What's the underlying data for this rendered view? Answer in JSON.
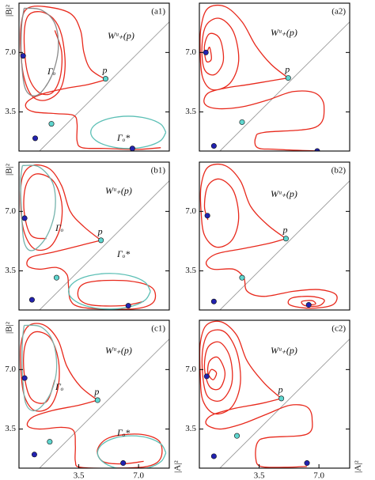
{
  "chart_data": [
    {
      "type": "line",
      "panel_label": "(a1)",
      "ylabel": "|B|²",
      "xlim": [
        0,
        8.8
      ],
      "ylim": [
        1.2,
        9.9
      ],
      "yticks": [
        {
          "value": 3.5,
          "label": "3.5"
        },
        {
          "value": 7,
          "label": "7.0"
        }
      ],
      "series": [
        {
          "name": "Wᵘ₊(p)",
          "color": "#e8291c",
          "x": [
            5.1,
            4.2,
            3.8,
            3.6,
            3.0,
            1.5,
            0.5,
            0.15,
            0.1,
            0.3,
            0.8,
            1.6,
            2.4,
            2.7,
            2.5,
            2.0,
            1.2,
            0.5,
            0.3,
            0.5,
            1.1,
            1.9,
            2.4,
            2.5,
            2.1,
            null,
            5.1,
            4.0,
            2.8,
            1.5,
            0.6,
            0.4,
            0.9,
            2.2,
            3.2,
            3.4,
            3.4,
            3.7,
            5.0,
            7.0,
            8.3
          ],
          "y": [
            5.4,
            6.0,
            7.0,
            8.3,
            9.3,
            9.7,
            9.6,
            8.8,
            7.2,
            5.5,
            4.4,
            4.2,
            4.8,
            6.2,
            8.0,
            9.0,
            9.4,
            9.1,
            7.8,
            5.8,
            4.7,
            4.6,
            5.5,
            7.0,
            8.3,
            null,
            5.4,
            5.1,
            4.9,
            4.6,
            4.2,
            3.8,
            3.5,
            3.4,
            3.3,
            2.8,
            1.8,
            1.4,
            1.35,
            1.3,
            1.4
          ]
        },
        {
          "name": "Γₒ",
          "color": "#8a8a8a",
          "x": [
            0.3,
            1.3,
            2.1,
            2.3,
            1.9,
            1.1,
            0.4,
            0.15,
            0.15,
            0.3
          ],
          "y": [
            9.6,
            9.5,
            8.7,
            7.2,
            5.6,
            4.5,
            4.8,
            6.5,
            8.5,
            9.6
          ]
        },
        {
          "name": "Γₒ*",
          "color": "#5bbfb5",
          "x": [
            8.6,
            8.3,
            7.5,
            6.4,
            5.3,
            4.5,
            4.2,
            4.5,
            5.3,
            6.4,
            7.5,
            8.3,
            8.6
          ],
          "y": [
            2.3,
            2.78,
            3.12,
            3.25,
            3.12,
            2.78,
            2.3,
            1.82,
            1.48,
            1.35,
            1.48,
            1.82,
            2.3
          ]
        }
      ],
      "points": {
        "x": [
          0.24,
          5.07,
          1.9,
          0.95,
          6.64
        ],
        "y": [
          6.8,
          5.45,
          2.8,
          1.95,
          1.35
        ],
        "labels": [
          null,
          "p",
          null,
          null,
          null
        ],
        "colors": [
          "#2222b0",
          "#5fd6cf",
          "#5fd6cf",
          "#2222b0",
          "#2222b0"
        ]
      }
    },
    {
      "type": "line",
      "panel_label": "(a2)",
      "xlim": [
        0,
        8.8
      ],
      "ylim": [
        1.2,
        9.9
      ],
      "yticks": [
        {
          "value": 3.5,
          "label": "3.5"
        },
        {
          "value": 7,
          "label": "7.0"
        }
      ],
      "series": [
        {
          "name": "Wᵘ₊(p)",
          "color": "#e8291c",
          "x": [
            5.2,
            4.2,
            3.3,
            2.5,
            1.5,
            0.5,
            0.1,
            0.05,
            0.2,
            0.8,
            1.8,
            2.3,
            2.0,
            1.2,
            0.4,
            0.15,
            0.3,
            0.9,
            1.4,
            1.2,
            0.6,
            0.3,
            0.4,
            0.7,
            0.6,
            0.45,
            null,
            5.2,
            4.0,
            2.8,
            1.5,
            0.5,
            0.3,
            1.0,
            2.5,
            4.0,
            5.5,
            6.8,
            7.3,
            6.8,
            3.8,
            3.3,
            3.4,
            4.5,
            6.9
          ],
          "y": [
            5.5,
            6.3,
            7.4,
            8.8,
            9.7,
            9.6,
            8.5,
            7.0,
            5.5,
            4.8,
            5.2,
            6.5,
            8.2,
            9.0,
            8.6,
            7.3,
            6.0,
            5.7,
            6.5,
            7.8,
            8.1,
            7.4,
            6.5,
            6.6,
            7.3,
            7.0,
            null,
            5.5,
            5.3,
            5.1,
            4.9,
            4.6,
            4.0,
            3.7,
            3.8,
            4.2,
            4.7,
            4.6,
            3.8,
            2.6,
            2.3,
            2.0,
            1.4,
            1.3,
            1.2
          ]
        }
      ],
      "points": {
        "x": [
          0.38,
          5.2,
          2.5,
          0.85,
          6.9
        ],
        "y": [
          7.0,
          5.5,
          2.9,
          1.5,
          1.2
        ],
        "labels": [
          null,
          "p",
          null,
          null,
          null
        ],
        "colors": [
          "#2222b0",
          "#5fd6cf",
          "#5fd6cf",
          "#2222b0",
          "#2222b0"
        ]
      }
    },
    {
      "type": "line",
      "panel_label": "(b1)",
      "ylabel": "|B|²",
      "xlim": [
        0,
        8.8
      ],
      "ylim": [
        1.2,
        9.9
      ],
      "yticks": [
        {
          "value": 3.5,
          "label": "3.5"
        },
        {
          "value": 7,
          "label": "7.0"
        }
      ],
      "series": [
        {
          "name": "Wᵘ₊(p)",
          "color": "#e8291c",
          "x": [
            4.8,
            3.8,
            3.0,
            2.5,
            1.8,
            0.8,
            0.2,
            0.1,
            0.3,
            0.9,
            1.8,
            2.4,
            2.5,
            2.0,
            1.0,
            0.4,
            0.3,
            0.7,
            1.6,
            null,
            4.8,
            3.6,
            2.0,
            0.7,
            0.5,
            1.2,
            2.2,
            2.8,
            2.9,
            3.0,
            3.5,
            5.0,
            7.0,
            7.9,
            7.8,
            6.5,
            4.5,
            3.6,
            3.5,
            4.2,
            6.0,
            7.3
          ],
          "y": [
            5.3,
            6.1,
            7.0,
            8.5,
            9.5,
            9.7,
            9.0,
            7.5,
            5.8,
            4.8,
            4.9,
            6.0,
            7.5,
            8.8,
            9.2,
            8.5,
            7.0,
            5.6,
            5.4,
            null,
            5.3,
            5.0,
            4.6,
            4.3,
            3.8,
            3.6,
            3.7,
            3.3,
            2.6,
            1.8,
            1.4,
            1.25,
            1.3,
            1.7,
            2.5,
            2.9,
            2.9,
            2.6,
            1.9,
            1.5,
            1.45,
            1.7
          ]
        },
        {
          "name": "Γₒ",
          "color": "#74b3ac",
          "x": [
            0.2,
            1.2,
            2.0,
            2.1,
            1.6,
            0.8,
            0.3,
            0.15,
            0.1,
            0.2
          ],
          "y": [
            9.7,
            9.6,
            8.6,
            7.0,
            5.5,
            4.7,
            5.2,
            7.0,
            8.8,
            9.7
          ]
        },
        {
          "name": "Γₒ*",
          "color": "#5bbfb5",
          "x": [
            7.7,
            7.38,
            6.5,
            5.3,
            4.1,
            3.22,
            2.9,
            3.22,
            4.1,
            5.3,
            6.5,
            7.38,
            7.7
          ],
          "y": [
            2.3,
            2.83,
            3.21,
            3.35,
            3.21,
            2.83,
            2.3,
            1.78,
            1.39,
            1.25,
            1.39,
            1.78,
            2.3
          ]
        }
      ],
      "points": {
        "x": [
          0.33,
          4.8,
          2.2,
          0.76,
          6.4
        ],
        "y": [
          6.6,
          5.3,
          3.1,
          1.8,
          1.45
        ],
        "labels": [
          null,
          "p",
          null,
          null,
          null
        ],
        "colors": [
          "#2222b0",
          "#5fd6cf",
          "#5fd6cf",
          "#2222b0",
          "#2222b0"
        ]
      }
    },
    {
      "type": "line",
      "panel_label": "(b2)",
      "xlim": [
        0,
        8.8
      ],
      "ylim": [
        1.2,
        9.9
      ],
      "yticks": [
        {
          "value": 3.5,
          "label": "3.5"
        },
        {
          "value": 7,
          "label": "7.0"
        }
      ],
      "series": [
        {
          "name": "Wᵘ₊(p)",
          "color": "#e8291c",
          "x": [
            5.07,
            4.0,
            3.0,
            2.4,
            1.5,
            0.5,
            0.1,
            0.1,
            0.3,
            1.0,
            1.9,
            2.3,
            2.0,
            1.2,
            0.5,
            0.3,
            0.5,
            null,
            5.07,
            4.0,
            2.5,
            1.0,
            0.4,
            0.8,
            2.0,
            2.6,
            2.8,
            3.8,
            5.5,
            7.0,
            8.0,
            7.8,
            6.5,
            5.3,
            5.4,
            6.5,
            7.3,
            7.0,
            6.2,
            6.0,
            6.6,
            6.8,
            6.4
          ],
          "y": [
            5.4,
            6.2,
            7.3,
            8.8,
            9.7,
            9.6,
            8.5,
            7.0,
            5.6,
            4.9,
            5.3,
            6.6,
            8.2,
            8.9,
            8.5,
            7.3,
            6.5,
            null,
            5.4,
            5.1,
            4.8,
            4.5,
            4.0,
            3.6,
            3.6,
            3.1,
            2.3,
            2.0,
            2.3,
            2.4,
            2.1,
            1.5,
            1.3,
            1.5,
            1.9,
            2.0,
            1.8,
            1.45,
            1.45,
            1.7,
            1.75,
            1.55,
            1.5
          ]
        }
      ],
      "points": {
        "x": [
          0.47,
          5.07,
          2.5,
          0.85,
          6.4
        ],
        "y": [
          6.75,
          5.4,
          3.1,
          1.7,
          1.5
        ],
        "labels": [
          null,
          "p",
          null,
          null,
          null
        ],
        "colors": [
          "#2222b0",
          "#5fd6cf",
          "#5fd6cf",
          "#2222b0",
          "#2222b0"
        ]
      }
    },
    {
      "type": "line",
      "panel_label": "(c1)",
      "ylabel": "|B|²",
      "xlabel": "|A|²",
      "xlim": [
        0,
        8.8
      ],
      "ylim": [
        1.2,
        9.9
      ],
      "xticks": [
        {
          "value": 3.5,
          "label": "3.5"
        },
        {
          "value": 7,
          "label": "7.0"
        }
      ],
      "yticks": [
        {
          "value": 3.5,
          "label": "3.5"
        },
        {
          "value": 7,
          "label": "7.0"
        }
      ],
      "series": [
        {
          "name": "Wᵘ₊(p)",
          "color": "#e8291c",
          "x": [
            4.6,
            3.6,
            2.8,
            2.3,
            1.5,
            0.6,
            0.15,
            0.1,
            0.3,
            0.9,
            1.8,
            2.3,
            2.3,
            1.8,
            0.9,
            0.35,
            0.3,
            0.7,
            1.6,
            2.1,
            null,
            4.6,
            3.5,
            2.0,
            0.8,
            0.5,
            1.2,
            2.5,
            3.2,
            3.3,
            3.3,
            3.6,
            5.5,
            7.5,
            8.3,
            8.2,
            7.0,
            5.3,
            4.6,
            4.9,
            6.0,
            7.3
          ],
          "y": [
            5.2,
            6.0,
            7.2,
            8.7,
            9.6,
            9.6,
            8.7,
            7.2,
            5.5,
            4.6,
            4.8,
            6.0,
            7.6,
            8.9,
            9.2,
            8.4,
            6.8,
            5.3,
            5.1,
            6.4,
            null,
            5.2,
            4.9,
            4.6,
            4.2,
            3.7,
            3.5,
            3.6,
            3.4,
            2.5,
            1.6,
            1.25,
            1.2,
            1.3,
            1.8,
            2.8,
            3.2,
            3.0,
            2.3,
            1.6,
            1.45,
            1.6
          ]
        },
        {
          "name": "Γₒ",
          "color": "#7bb5ad",
          "x": [
            0.3,
            1.3,
            2.0,
            2.2,
            1.8,
            1.0,
            0.4,
            0.2,
            0.2,
            0.3
          ],
          "y": [
            9.6,
            9.5,
            8.6,
            7.0,
            5.5,
            4.6,
            5.0,
            6.8,
            8.6,
            9.6
          ]
        },
        {
          "name": "Γₒ*",
          "color": "#5bbfb5",
          "x": [
            8.6,
            8.33,
            7.6,
            6.6,
            5.6,
            4.87,
            4.6,
            4.87,
            5.6,
            6.6,
            7.6,
            8.33,
            8.6
          ],
          "y": [
            2.1,
            2.6,
            2.97,
            3.1,
            2.97,
            2.6,
            2.1,
            1.6,
            1.23,
            1.1,
            1.23,
            1.6,
            2.1
          ]
        }
      ],
      "points": {
        "x": [
          0.33,
          4.6,
          1.8,
          0.9,
          6.1
        ],
        "y": [
          6.5,
          5.2,
          2.75,
          2.0,
          1.5
        ],
        "labels": [
          null,
          "p",
          null,
          null,
          null
        ],
        "colors": [
          "#2222b0",
          "#5fd6cf",
          "#5fd6cf",
          "#2222b0",
          "#2222b0"
        ]
      }
    },
    {
      "type": "line",
      "panel_label": "(c2)",
      "xlabel": "|A|²",
      "xlim": [
        0,
        8.8
      ],
      "ylim": [
        1.2,
        9.9
      ],
      "xticks": [
        {
          "value": 3.5,
          "label": "3.5"
        },
        {
          "value": 7,
          "label": "7.0"
        }
      ],
      "yticks": [
        {
          "value": 3.5,
          "label": "3.5"
        },
        {
          "value": 7,
          "label": "7.0"
        }
      ],
      "series": [
        {
          "name": "Wᵘ₊(p)",
          "color": "#e8291c",
          "x": [
            4.8,
            3.8,
            2.8,
            2.2,
            1.3,
            0.4,
            0.05,
            0.05,
            0.2,
            0.9,
            1.9,
            2.4,
            2.2,
            1.5,
            0.6,
            0.2,
            0.2,
            0.5,
            1.3,
            1.9,
            1.8,
            1.2,
            0.5,
            0.3,
            0.6,
            1.2,
            1.5,
            1.1,
            0.6,
            0.5,
            0.8,
            1.0,
            0.7,
            0.5,
            null,
            4.8,
            3.6,
            2.0,
            0.7,
            0.4,
            1.2,
            2.5,
            4.0,
            5.3,
            6.3,
            6.6,
            6.3,
            4.0,
            3.4,
            3.3,
            3.6,
            5.0,
            6.3
          ],
          "y": [
            5.3,
            6.2,
            7.5,
            9.0,
            9.8,
            9.6,
            8.5,
            6.8,
            5.2,
            4.4,
            4.8,
            6.2,
            8.0,
            9.2,
            9.2,
            8.2,
            6.6,
            5.4,
            5.2,
            6.2,
            7.7,
            8.6,
            8.3,
            7.1,
            6.0,
            5.9,
            6.8,
            7.7,
            7.5,
            6.8,
            6.4,
            6.8,
            7.0,
            6.6,
            null,
            5.3,
            5.0,
            4.7,
            4.3,
            3.8,
            3.5,
            3.8,
            4.4,
            4.9,
            4.8,
            4.1,
            3.2,
            3.0,
            2.7,
            1.8,
            1.3,
            1.25,
            1.3
          ]
        }
      ],
      "points": {
        "x": [
          0.43,
          4.8,
          2.2,
          0.85,
          6.3
        ],
        "y": [
          6.6,
          5.3,
          3.1,
          1.9,
          1.5
        ],
        "labels": [
          null,
          "p",
          null,
          null,
          null
        ],
        "colors": [
          "#2222b0",
          "#5fd6cf",
          "#5fd6cf",
          "#2222b0",
          "#2222b0"
        ]
      }
    }
  ]
}
